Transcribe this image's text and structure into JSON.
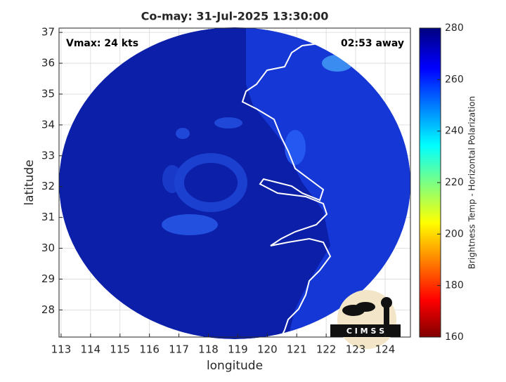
{
  "chart_data": {
    "type": "map",
    "title": "Co-may: 31-Jul-2025 13:30:00",
    "x_label": "longitude",
    "y_label": "latitude",
    "xlim": [
      112.93,
      124.86
    ],
    "ylim": [
      27.12,
      37.14
    ],
    "xticks": [
      113,
      114,
      115,
      116,
      117,
      118,
      119,
      120,
      121,
      122,
      123,
      124
    ],
    "yticks": [
      28,
      29,
      30,
      31,
      32,
      33,
      34,
      35,
      36,
      37
    ],
    "grid": true,
    "annotations": [
      "Vmax: 24 kts",
      "02:53 away"
    ],
    "colorbar": {
      "label": "Brightness Temp - Horizontal Polarization",
      "lim": [
        160,
        280
      ],
      "ticks": [
        160,
        180,
        200,
        220,
        240,
        260,
        280
      ]
    },
    "logo_text": "C I M S S"
  }
}
